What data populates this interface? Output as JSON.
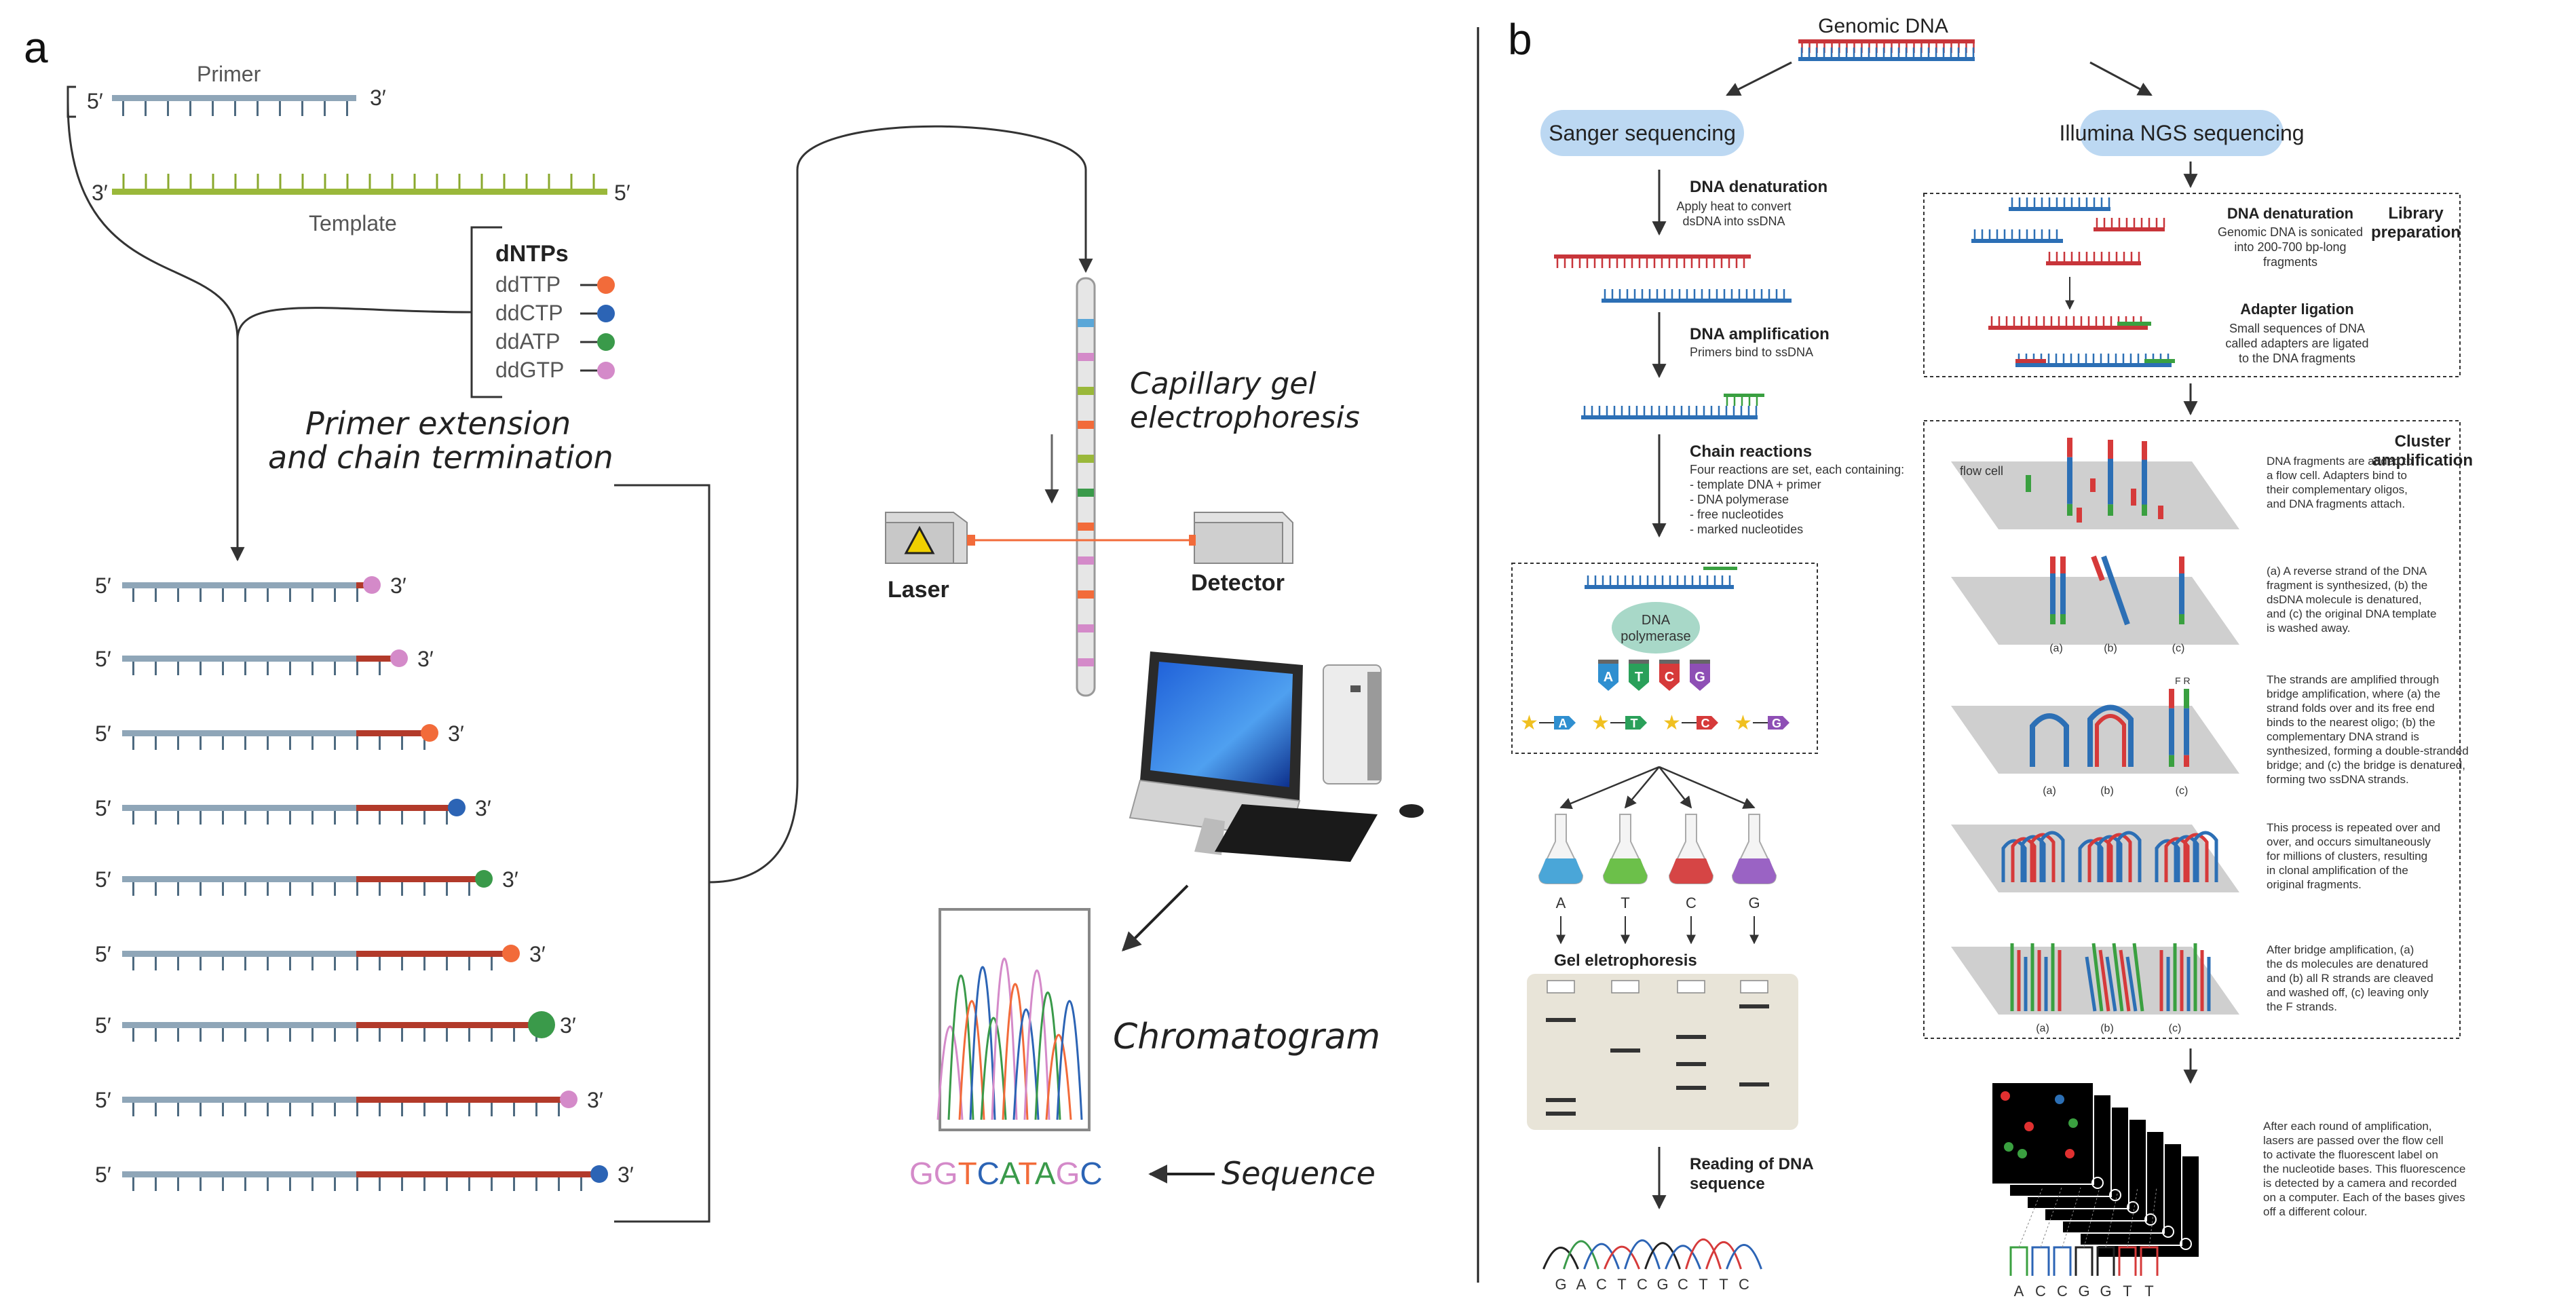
{
  "panel_a": {
    "letter": "a",
    "primer_label": "Primer",
    "template_label": "Template",
    "five_prime": "5′",
    "three_prime": "3′",
    "dntps_title": "dNTPs",
    "ddntps": [
      {
        "name": "ddTTP",
        "color": "#f26b3a"
      },
      {
        "name": "ddCTP",
        "color": "#2c64b5"
      },
      {
        "name": "ddATP",
        "color": "#3a9a4a"
      },
      {
        "name": "ddGTP",
        "color": "#d48ac9"
      }
    ],
    "primer_extension_line1": "Primer extension",
    "primer_extension_line2": "and chain termination",
    "fragment_end_colors": [
      "#d48ac9",
      "#d48ac9",
      "#f26b3a",
      "#2c64b5",
      "#3a9a4a",
      "#f26b3a",
      "#3a9a4a",
      "#d48ac9",
      "#2c64b5"
    ],
    "capillary_line1": "Capillary gel",
    "capillary_line2": "electrophoresis",
    "laser_label": "Laser",
    "detector_label": "Detector",
    "chromatogram_label": "Chromatogram",
    "sequence_label": "Sequence",
    "sequence_letters": [
      {
        "l": "G",
        "c": "#d48ac9"
      },
      {
        "l": "G",
        "c": "#d48ac9"
      },
      {
        "l": "T",
        "c": "#f26b3a"
      },
      {
        "l": "C",
        "c": "#2c64b5"
      },
      {
        "l": "A",
        "c": "#3a9a4a"
      },
      {
        "l": "T",
        "c": "#f26b3a"
      },
      {
        "l": "A",
        "c": "#3a9a4a"
      },
      {
        "l": "G",
        "c": "#d48ac9"
      },
      {
        "l": "C",
        "c": "#2c64b5"
      }
    ]
  },
  "panel_b": {
    "letter": "b",
    "genomic_dna": "Genomic DNA",
    "sanger_title": "Sanger sequencing",
    "illumina_title": "Illumina NGS sequencing",
    "sanger_steps": {
      "denaturation_title": "DNA denaturation",
      "denaturation_desc": [
        "Apply heat to convert",
        "dsDNA into ssDNA"
      ],
      "amplification_title": "DNA amplification",
      "amplification_desc": [
        "Primers bind to ssDNA"
      ],
      "chain_title": "Chain reactions",
      "chain_desc": [
        "Four reactions are set, each containing:",
        "- template DNA + primer",
        "- DNA polymerase",
        "- free nucleotides",
        "- marked nucleotides"
      ],
      "polymerase": [
        "DNA",
        "polymerase"
      ],
      "nucleotides": [
        {
          "l": "A",
          "c": "#2f8fd0"
        },
        {
          "l": "T",
          "c": "#2aa05a"
        },
        {
          "l": "C",
          "c": "#d63a3a"
        },
        {
          "l": "G",
          "c": "#8e4fb5"
        }
      ],
      "flask_labels": [
        "A",
        "T",
        "C",
        "G"
      ],
      "flask_colors": [
        "#4aa6d8",
        "#6cc04a",
        "#d64545",
        "#9a63c4"
      ],
      "gel_title": "Gel eletrophoresis",
      "reading_title": [
        "Reading of DNA",
        "sequence"
      ],
      "read_sequence": [
        "G",
        "A",
        "C",
        "T",
        "C",
        "G",
        "C",
        "T",
        "T",
        "C"
      ]
    },
    "illumina_steps": {
      "library_title": [
        "Library",
        "preparation"
      ],
      "denaturation_title": "DNA denaturation",
      "denaturation_desc": [
        "Genomic DNA is sonicated",
        "into 200-700 bp-long",
        "fragments"
      ],
      "adapter_title": "Adapter ligation",
      "adapter_desc": [
        "Small sequences of DNA",
        "called adapters are ligated",
        "to the DNA fragments"
      ],
      "cluster_title": [
        "Cluster",
        "amplification"
      ],
      "flow_cell_label": "flow cell",
      "cluster_desc_1": [
        "DNA fragments are added to",
        "a flow cell. Adapters bind to",
        "their complementary oligos,",
        "and DNA fragments attach."
      ],
      "cluster_desc_2": [
        "(a) A reverse strand of the DNA",
        "fragment is synthesized, (b) the",
        "dsDNA molecule is denatured,",
        "and (c) the original DNA template",
        "is washed away."
      ],
      "cluster_desc_3": [
        "The strands are amplified through",
        "bridge amplification, where (a) the",
        "strand folds over and its free end",
        "binds to the nearest oligo; (b) the",
        "complementary DNA strand is",
        "synthesized, forming a double-stranded",
        "bridge; and (c) the bridge is denatured,",
        "forming two ssDNA strands."
      ],
      "cluster_desc_4": [
        "This process is repeated over and",
        "over, and occurs simultaneously",
        "for millions of clusters, resulting",
        "in clonal amplification of the",
        "original fragments."
      ],
      "cluster_desc_5": [
        "After bridge amplification, (a)",
        "the ds molecules are denatured",
        "and (b) all R strands are cleaved",
        "and washed off, (c) leaving only",
        "the F strands."
      ],
      "abc_labels": [
        "(a)",
        "(b)",
        "(c)"
      ],
      "fr_label": "F R",
      "final_desc": [
        "After each round of amplification,",
        "lasers are passed over the flow cell",
        "to activate the fluorescent label on",
        "the nucleotide bases. This fluorescence",
        "is detected by a camera and recorded",
        "on a computer. Each of the bases gives",
        "off a different colour."
      ],
      "read_sequence": [
        "A",
        "C",
        "C",
        "G",
        "G",
        "T",
        "T"
      ]
    }
  }
}
